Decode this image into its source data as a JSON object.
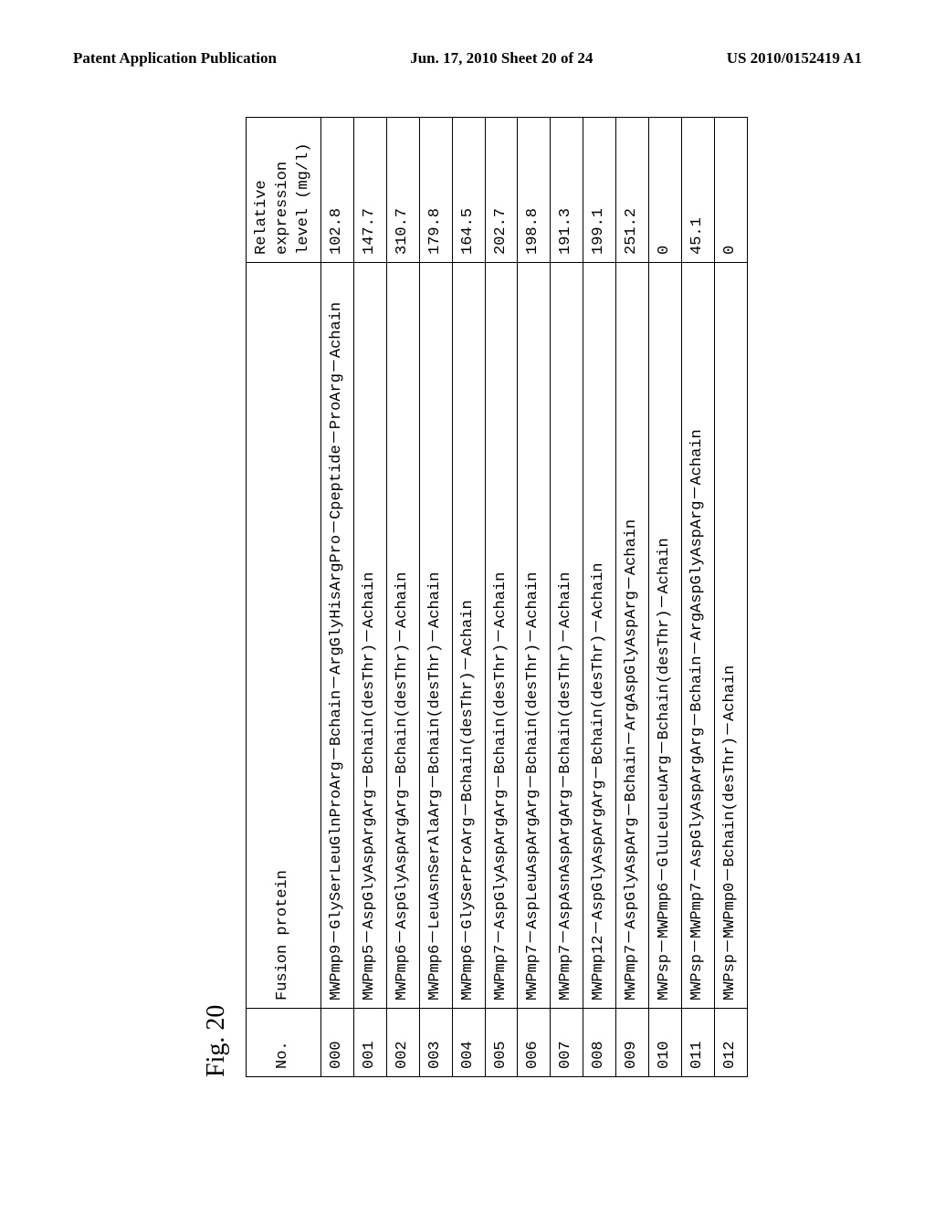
{
  "header": {
    "left": "Patent Application Publication",
    "center": "Jun. 17, 2010  Sheet 20 of 24",
    "right": "US 2010/0152419 A1"
  },
  "figure_label": "Fig. 20",
  "table": {
    "columns": {
      "no": "No.",
      "protein": "Fusion protein",
      "level": "Relative expression level (mg/l)"
    },
    "rows": [
      {
        "no": "000",
        "protein": "MWPmp9－GlySerLeuGlnProArg－Bchain－ArgGlyHisArgPro－Cpeptide－ProArg－Achain",
        "level": "102.8"
      },
      {
        "no": "001",
        "protein": "MWPmp5－AspGlyAspArgArg－Bchain(desThr)－Achain",
        "level": "147.7"
      },
      {
        "no": "002",
        "protein": "MWPmp6－AspGlyAspArgArg－Bchain(desThr)－Achain",
        "level": "310.7"
      },
      {
        "no": "003",
        "protein": "MWPmp6－LeuAsnSerAlaArg－Bchain(desThr)－Achain",
        "level": "179.8"
      },
      {
        "no": "004",
        "protein": "MWPmp6－GlySerProArg－Bchain(desThr)－Achain",
        "level": "164.5"
      },
      {
        "no": "005",
        "protein": "MWPmp7－AspGlyAspArgArg－Bchain(desThr)－Achain",
        "level": "202.7"
      },
      {
        "no": "006",
        "protein": "MWPmp7－AspLeuAspArgArg－Bchain(desThr)－Achain",
        "level": "198.8"
      },
      {
        "no": "007",
        "protein": "MWPmp7－AspAsnAspArgArg－Bchain(desThr)－Achain",
        "level": "191.3"
      },
      {
        "no": "008",
        "protein": "MWPmp12－AspGlyAspArgArg－Bchain(desThr)－Achain",
        "level": "199.1"
      },
      {
        "no": "009",
        "protein": "MWPmp7－AspGlyAspArg－Bchain－ArgAspGlyAspArg－Achain",
        "level": "251.2"
      },
      {
        "no": "010",
        "protein": "MWPsp－MWPmp6－GluLeuLeuArg－Bchain(desThr)－Achain",
        "level": "0"
      },
      {
        "no": "011",
        "protein": "MWPsp－MWPmp7－AspGlyAspArgArg－Bchain－ArgAspGlyAspArg－Achain",
        "level": "45.1"
      },
      {
        "no": "012",
        "protein": "MWPsp－MWPmp0－Bchain(desThr)－Achain",
        "level": "0"
      }
    ]
  }
}
